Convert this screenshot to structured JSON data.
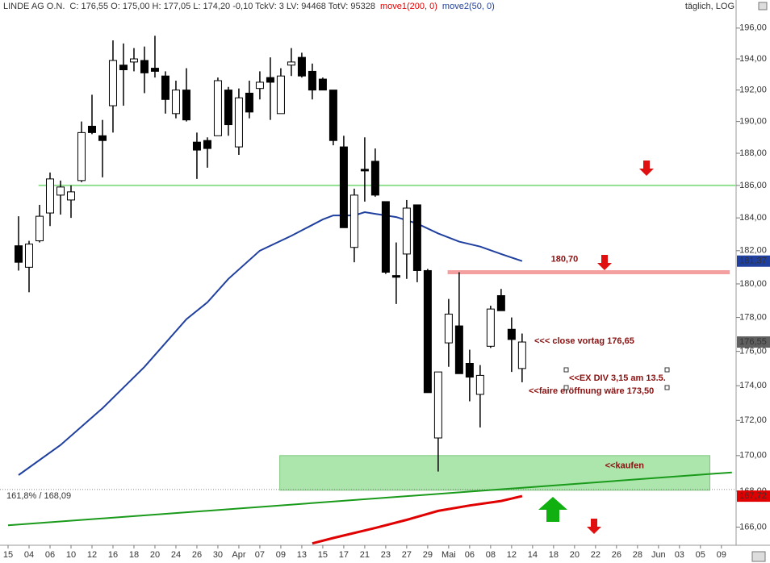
{
  "chart_data": {
    "type": "candlestick",
    "title": "LINDE AG O.N.",
    "info": "C: 176,55  O: 175,00  H: 177,05  L: 174,20  -0,10  TckV: 3  LV: 94468  TotV: 95328",
    "subtitle": "täglich, LOG",
    "log_scale": true,
    "grid": false,
    "up_color": "#ffffff",
    "down_color": "#000000",
    "xlim": [
      -0.77,
      69.4
    ],
    "xticks": [
      {
        "value": 0,
        "label": "15"
      },
      {
        "value": 2,
        "label": "04"
      },
      {
        "value": 4,
        "label": "06"
      },
      {
        "value": 6,
        "label": "10"
      },
      {
        "value": 8,
        "label": "12"
      },
      {
        "value": 10,
        "label": "16"
      },
      {
        "value": 12,
        "label": "18"
      },
      {
        "value": 14,
        "label": "20"
      },
      {
        "value": 16,
        "label": "24"
      },
      {
        "value": 18,
        "label": "26"
      },
      {
        "value": 20,
        "label": "30"
      },
      {
        "value": 22,
        "label": "Apr"
      },
      {
        "value": 24,
        "label": "07"
      },
      {
        "value": 26,
        "label": "09"
      },
      {
        "value": 28,
        "label": "13"
      },
      {
        "value": 30,
        "label": "15"
      },
      {
        "value": 32,
        "label": "17"
      },
      {
        "value": 34,
        "label": "21"
      },
      {
        "value": 36,
        "label": "23"
      },
      {
        "value": 38,
        "label": "27"
      },
      {
        "value": 40,
        "label": "29"
      },
      {
        "value": 42,
        "label": "Mai"
      },
      {
        "value": 44,
        "label": "06"
      },
      {
        "value": 46,
        "label": "08"
      },
      {
        "value": 48,
        "label": "12"
      },
      {
        "value": 50,
        "label": "14"
      },
      {
        "value": 52,
        "label": "18"
      },
      {
        "value": 54,
        "label": "20"
      },
      {
        "value": 56,
        "label": "22"
      },
      {
        "value": 58,
        "label": "26"
      },
      {
        "value": 60,
        "label": "28"
      },
      {
        "value": 62,
        "label": "Jun"
      },
      {
        "value": 64,
        "label": "03"
      },
      {
        "value": 66,
        "label": "05"
      },
      {
        "value": 68,
        "label": "09"
      }
    ],
    "ylim": [
      165,
      197.1
    ],
    "yticks": [
      {
        "value": 166,
        "label": "166,00"
      },
      {
        "value": 168,
        "label": "168,00"
      },
      {
        "value": 170,
        "label": "170,00"
      },
      {
        "value": 172,
        "label": "172,00"
      },
      {
        "value": 174,
        "label": "174,00"
      },
      {
        "value": 176,
        "label": "176,00"
      },
      {
        "value": 178,
        "label": "178,00"
      },
      {
        "value": 180,
        "label": "180,00"
      },
      {
        "value": 182,
        "label": "182,00"
      },
      {
        "value": 184,
        "label": "184,00"
      },
      {
        "value": 186,
        "label": "186,00"
      },
      {
        "value": 188,
        "label": "188,00"
      },
      {
        "value": 190,
        "label": "190,00"
      },
      {
        "value": 192,
        "label": "192,00"
      },
      {
        "value": 194,
        "label": "194,00"
      },
      {
        "value": 196,
        "label": "196,00"
      }
    ],
    "x": [
      1,
      2,
      3,
      4,
      5,
      6,
      7,
      8,
      9,
      10,
      11,
      12,
      13,
      14,
      15,
      16,
      17,
      18,
      19,
      20,
      21,
      22,
      23,
      24,
      25,
      26,
      27,
      28,
      29,
      30,
      31,
      32,
      33,
      34,
      35,
      36,
      37,
      38,
      39,
      40,
      41,
      42,
      43,
      44,
      45,
      46,
      47,
      48,
      49
    ],
    "open": [
      182.3,
      181.0,
      182.6,
      184.3,
      185.4,
      185.1,
      186.3,
      189.7,
      189.1,
      191.0,
      193.6,
      193.8,
      193.9,
      193.4,
      192.9,
      190.5,
      192.0,
      188.7,
      188.8,
      189.1,
      192.0,
      188.4,
      191.8,
      192.1,
      192.8,
      190.5,
      193.6,
      194.1,
      193.2,
      192.7,
      192.0,
      188.4,
      182.2,
      187.0,
      187.5,
      185.0,
      180.5,
      181.8,
      184.8,
      180.8,
      171.0,
      176.5,
      177.5,
      175.3,
      173.5,
      176.3,
      179.3,
      177.3,
      175.0
    ],
    "high": [
      184.1,
      182.6,
      184.8,
      186.8,
      186.3,
      186.0,
      190.0,
      191.7,
      190.1,
      195.2,
      195.0,
      194.7,
      194.8,
      195.5,
      193.2,
      192.6,
      193.4,
      189.3,
      189.0,
      192.8,
      192.2,
      192.1,
      192.6,
      193.2,
      194.1,
      193.4,
      194.7,
      194.4,
      193.7,
      192.8,
      192.0,
      189.1,
      185.8,
      189.0,
      188.3,
      185.0,
      182.5,
      185.1,
      184.8,
      180.9,
      174.8,
      179.1,
      180.7,
      176.1,
      175.2,
      178.7,
      179.7,
      178.0,
      177.05
    ],
    "low": [
      180.8,
      179.5,
      182.5,
      183.5,
      184.2,
      184.0,
      186.2,
      189.2,
      186.5,
      189.3,
      191.0,
      193.2,
      191.8,
      192.8,
      190.5,
      190.2,
      190.0,
      186.4,
      187.1,
      189.1,
      189.1,
      187.9,
      190.2,
      191.4,
      190.1,
      190.5,
      192.9,
      192.8,
      191.4,
      192.0,
      188.5,
      183.4,
      181.3,
      185.0,
      185.3,
      180.6,
      178.8,
      180.3,
      180.1,
      173.6,
      169.1,
      175.1,
      174.7,
      173.1,
      171.6,
      176.2,
      178.4,
      174.8,
      174.2
    ],
    "close": [
      181.3,
      182.4,
      184.1,
      186.4,
      185.9,
      185.6,
      189.3,
      189.3,
      188.8,
      193.9,
      193.3,
      194.0,
      193.1,
      193.2,
      191.4,
      192.0,
      190.1,
      188.2,
      188.3,
      192.6,
      189.8,
      191.5,
      190.6,
      192.5,
      192.5,
      192.9,
      193.8,
      192.9,
      192.0,
      192.0,
      188.8,
      183.4,
      185.4,
      186.9,
      185.4,
      180.7,
      180.4,
      184.6,
      180.8,
      173.6,
      174.8,
      178.2,
      174.7,
      174.5,
      174.6,
      178.5,
      178.4,
      176.7,
      176.55
    ],
    "series": [
      {
        "name": "move1(200, 0)",
        "color": "#e00000",
        "x": [
          29,
          31,
          35,
          38,
          41,
          44,
          47,
          49
        ],
        "values": [
          165.1,
          165.4,
          165.95,
          166.4,
          166.9,
          167.2,
          167.45,
          167.72
        ]
      },
      {
        "name": "move2(50, 0)",
        "color": "#2040a0",
        "x": [
          1,
          5,
          9,
          13,
          17,
          19,
          21,
          24,
          27,
          30,
          31,
          33,
          34,
          35,
          37,
          39,
          41,
          43,
          45,
          47,
          49
        ],
        "values": [
          168.9,
          170.6,
          172.7,
          175.1,
          177.9,
          178.9,
          180.3,
          182.0,
          182.9,
          183.9,
          184.15,
          184.15,
          184.35,
          184.25,
          184.05,
          183.65,
          183.05,
          182.55,
          182.25,
          181.8,
          181.37
        ]
      }
    ],
    "trendline": {
      "color": "#1a9a1a",
      "x": [
        0,
        69
      ],
      "values": [
        166.1,
        169.05
      ]
    },
    "hlines": [
      {
        "value": 186,
        "x": [
          2.9,
          69.4
        ],
        "color": "#90e090"
      },
      {
        "value": 180.7,
        "x": [
          41.9,
          68.8
        ],
        "color": "#f4a0a0",
        "label": "180,70"
      }
    ],
    "fib": {
      "value": 168.09,
      "label": "161,8% / 168,09",
      "color": "#3050b0"
    },
    "zone": {
      "x": [
        25.9,
        66.9
      ],
      "y": [
        168.05,
        170.0
      ],
      "color": "#9fe29f",
      "label": "<<kaufen"
    },
    "price_tags": [
      {
        "value": 181.37,
        "label": "181,37",
        "color": "#2040a0"
      },
      {
        "value": 176.55,
        "label": "176,55",
        "color": "#606060"
      },
      {
        "value": 167.72,
        "label": "167,72",
        "color": "#e00000"
      }
    ],
    "annotations": [
      "<<< close vortag 176,65",
      "<<EX DIV 3,15 am 13.5.",
      "<<faire eröffnung wäre 173,50"
    ]
  }
}
